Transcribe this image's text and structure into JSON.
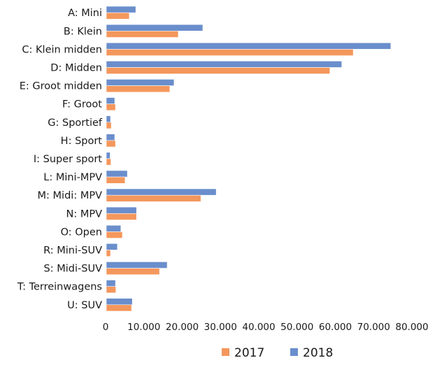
{
  "chart_data": {
    "type": "bar",
    "orientation": "horizontal",
    "title": "",
    "xlabel": "",
    "ylabel": "",
    "categories": [
      "A: Mini",
      "B: Klein",
      "C: Klein midden",
      "D: Midden",
      "E: Groot midden",
      "F: Groot",
      "G: Sportief",
      "H: Sport",
      "I: Super sport",
      "L: Mini-MPV",
      "M: Midi: MPV",
      "N: MPV",
      "O: Open",
      "R: Mini-SUV",
      "S: Midi-SUV",
      "T: Terreinwagens",
      "U: SUV"
    ],
    "series": [
      {
        "name": "2018",
        "color": "#6A8ECC",
        "values": [
          7700,
          25200,
          74300,
          61500,
          17700,
          2200,
          1100,
          2200,
          1000,
          5500,
          28700,
          7900,
          3800,
          2900,
          15900,
          2400,
          6800
        ]
      },
      {
        "name": "2017",
        "color": "#F4975C",
        "values": [
          6000,
          18800,
          64500,
          58400,
          16600,
          2400,
          1300,
          2400,
          1200,
          4900,
          24700,
          7900,
          4200,
          1100,
          13900,
          2500,
          6600
        ]
      }
    ],
    "xlim": [
      0,
      80000
    ],
    "xticks": [
      0,
      10000,
      20000,
      30000,
      40000,
      50000,
      60000,
      70000,
      80000
    ],
    "xtick_labels": [
      "0",
      "10.000",
      "20.000",
      "30.000",
      "40.000",
      "50.000",
      "60.000",
      "70.000",
      "80.000"
    ],
    "grid": false,
    "legend": {
      "placement": "bottom-center",
      "entries": [
        {
          "label": "2017",
          "color": "#F4975C"
        },
        {
          "label": "2018",
          "color": "#6A8ECC"
        }
      ]
    }
  }
}
